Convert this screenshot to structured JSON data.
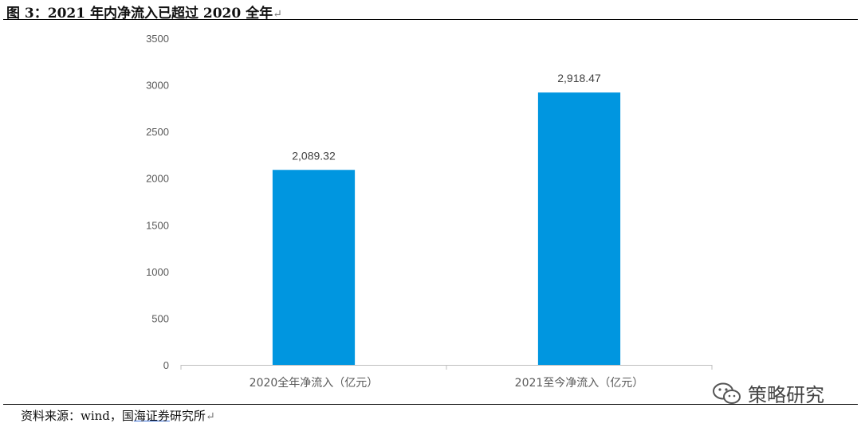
{
  "figure": {
    "title": "图 3：2021 年内净流入已超过 2020 全年",
    "return_mark": "↵",
    "source_prefix": "资料来源：wind，国",
    "source_underlined": "海证券",
    "source_suffix": "研究所",
    "watermark_text": "策略研究"
  },
  "colors": {
    "bar": "#0096E0",
    "axis": "#BFBFBF",
    "text": "#595959"
  },
  "chart_data": {
    "type": "bar",
    "title": "",
    "xlabel": "",
    "ylabel": "",
    "categories": [
      "2020全年净流入（亿元）",
      "2021至今净流入（亿元）"
    ],
    "values": [
      2089.32,
      2918.47
    ],
    "data_labels": [
      "2,089.32",
      "2,918.47"
    ],
    "yticks": [
      "0",
      "500",
      "1000",
      "1500",
      "2000",
      "2500",
      "3000",
      "3500"
    ],
    "ylim": [
      0,
      3500
    ],
    "grid": false,
    "legend": "none"
  }
}
